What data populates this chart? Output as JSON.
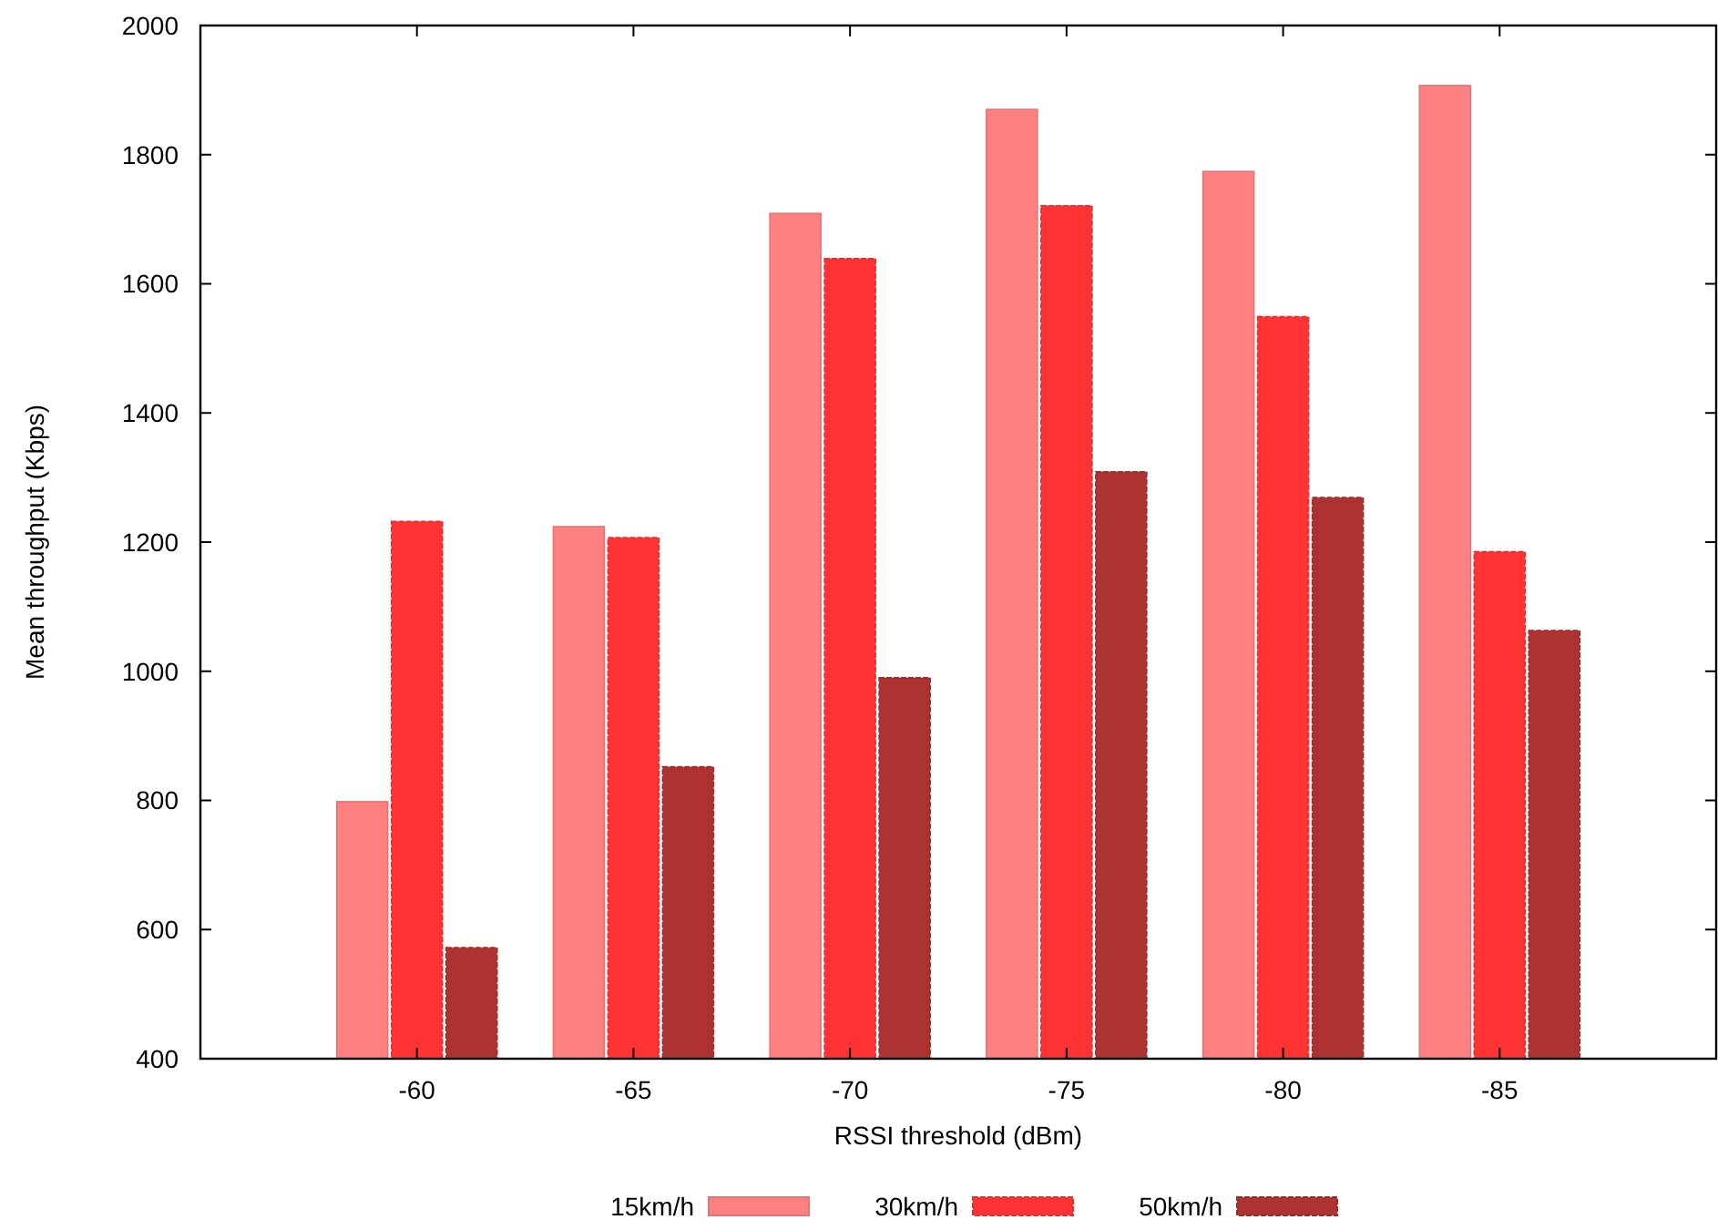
{
  "chart_data": {
    "type": "bar",
    "xlabel": "RSSI threshold (dBm)",
    "ylabel": "Mean throughput (Kbps)",
    "categories": [
      "-60",
      "-65",
      "-70",
      "-75",
      "-80",
      "-85"
    ],
    "series": [
      {
        "name": "15km/h",
        "color": "#ff8080",
        "values": [
          798,
          1224,
          1709,
          1870,
          1774,
          1907
        ]
      },
      {
        "name": "30km/h",
        "color": "#ff3333",
        "values": [
          1232,
          1207,
          1639,
          1721,
          1549,
          1185
        ]
      },
      {
        "name": "50km/h",
        "color": "#ad3232",
        "values": [
          572,
          852,
          990,
          1309,
          1269,
          1063
        ]
      }
    ],
    "ylim": [
      400,
      2000
    ],
    "yticks": [
      400,
      600,
      800,
      1000,
      1200,
      1400,
      1600,
      1800,
      2000
    ],
    "grid": false,
    "legend": "bottom"
  }
}
